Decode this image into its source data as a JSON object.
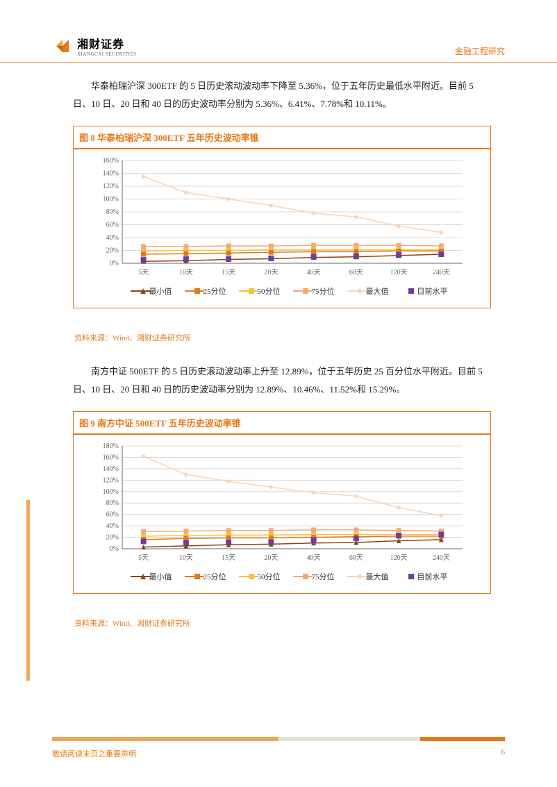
{
  "header": {
    "logo_cn": "湘财证券",
    "logo_en": "XIANGCAI SECURITIES",
    "right_text": "金融工程研究"
  },
  "para1": "华泰柏瑞沪深 300ETF 的 5 日历史滚动波动率下降至 5.36%，位于五年历史最低水平附近。目前 5 日、10 日、20 日和 40 日的历史波动率分别为 5.36%、6.41%、7.78%和 10.11%。",
  "para2": "南方中证 500ETF 的 5 日历史滚动波动率上升至 12.89%，位于五年历史 25 百分位水平附近。目前 5 日、10 日、20 日和 40 日的历史波动率分别为 12.89%、10.46%、11.52%和 15.29%。",
  "chart1": {
    "title": "图 8 华泰柏瑞沪深 300ETF 五年历史波动率锥",
    "source": "资料来源：Wind、湘财证券研究所",
    "categories": [
      "5天",
      "10天",
      "15天",
      "20天",
      "40天",
      "60天",
      "120天",
      "240天"
    ],
    "ylim": [
      0,
      160
    ],
    "ytick_step": 20,
    "colors": {
      "min": "#8b4513",
      "p25": "#e67817",
      "p50": "#f5c242",
      "p75": "#f5a97a",
      "max": "#f8d4b8",
      "cur": "#6b3fa0",
      "grid": "#d9d9d9",
      "axis": "#666",
      "tick_label": "#666"
    },
    "series": {
      "min": [
        3,
        4,
        6,
        7,
        9,
        10,
        12,
        14
      ],
      "p25": [
        14,
        15,
        16,
        17,
        18,
        18,
        19,
        19
      ],
      "p50": [
        19,
        20,
        20,
        21,
        21,
        21,
        21,
        21
      ],
      "p75": [
        26,
        26,
        27,
        27,
        28,
        28,
        28,
        27
      ],
      "max": [
        135,
        110,
        100,
        90,
        78,
        72,
        58,
        48
      ],
      "cur": [
        5.36,
        6.41,
        7.0,
        7.78,
        10.11,
        11,
        13,
        14
      ]
    },
    "legend": [
      {
        "label": "最小值",
        "key": "min",
        "marker": "triangle"
      },
      {
        "label": "25分位",
        "key": "p25",
        "marker": "square"
      },
      {
        "label": "50分位",
        "key": "p50",
        "marker": "square"
      },
      {
        "label": "75分位",
        "key": "p75",
        "marker": "square"
      },
      {
        "label": "最大值",
        "key": "max",
        "marker": "diamond"
      },
      {
        "label": "目前水平",
        "key": "cur",
        "marker": "square"
      }
    ]
  },
  "chart2": {
    "title": "图 9 南方中证 500ETF 五年历史波动率锥",
    "source": "资料来源：Wind、湘财证券研究所",
    "categories": [
      "5天",
      "10天",
      "15天",
      "20天",
      "40天",
      "60天",
      "120天",
      "240天"
    ],
    "ylim": [
      0,
      180
    ],
    "ytick_step": 20,
    "colors": {
      "min": "#8b4513",
      "p25": "#e67817",
      "p50": "#f5c242",
      "p75": "#f5a97a",
      "max": "#f8d4b8",
      "cur": "#6b3fa0",
      "grid": "#d9d9d9",
      "axis": "#666",
      "tick_label": "#666"
    },
    "series": {
      "min": [
        3,
        5,
        7,
        8,
        10,
        11,
        14,
        16
      ],
      "p25": [
        16,
        18,
        19,
        19,
        20,
        21,
        22,
        22
      ],
      "p50": [
        22,
        23,
        24,
        24,
        25,
        25,
        25,
        25
      ],
      "p75": [
        30,
        31,
        32,
        32,
        33,
        33,
        32,
        31
      ],
      "max": [
        162,
        130,
        118,
        108,
        98,
        92,
        72,
        58
      ],
      "cur": [
        12.89,
        10.46,
        11.0,
        11.52,
        15.29,
        18,
        23,
        25
      ]
    },
    "legend": [
      {
        "label": "最小值",
        "key": "min",
        "marker": "triangle"
      },
      {
        "label": "25分位",
        "key": "p25",
        "marker": "square"
      },
      {
        "label": "50分位",
        "key": "p50",
        "marker": "square"
      },
      {
        "label": "75分位",
        "key": "p75",
        "marker": "square"
      },
      {
        "label": "最大值",
        "key": "max",
        "marker": "diamond"
      },
      {
        "label": "目前水平",
        "key": "cur",
        "marker": "square"
      }
    ]
  },
  "footer": {
    "left": "敬请阅读末页之重要声明",
    "page": "6"
  }
}
